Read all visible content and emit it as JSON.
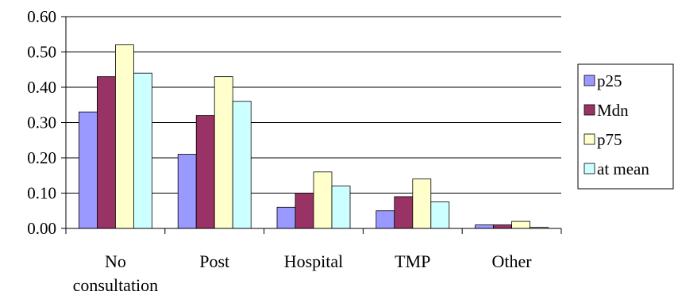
{
  "chart_data": {
    "type": "bar",
    "categories": [
      [
        "No",
        "consultation"
      ],
      [
        "Post"
      ],
      [
        "Hospital"
      ],
      [
        "TMP"
      ],
      [
        "Other"
      ]
    ],
    "series": [
      {
        "name": "p25",
        "color": "#9999ff",
        "values": [
          0.33,
          0.21,
          0.06,
          0.05,
          0.01
        ]
      },
      {
        "name": "Mdn",
        "color": "#993366",
        "values": [
          0.43,
          0.32,
          0.1,
          0.09,
          0.01
        ]
      },
      {
        "name": "p75",
        "color": "#ffffcc",
        "values": [
          0.52,
          0.43,
          0.16,
          0.14,
          0.02
        ]
      },
      {
        "name": "at mean",
        "color": "#ccffff",
        "values": [
          0.44,
          0.36,
          0.12,
          0.075,
          0.003
        ]
      }
    ],
    "ylim": [
      0,
      0.6
    ],
    "yticks": [
      "0.00",
      "0.10",
      "0.20",
      "0.30",
      "0.40",
      "0.50",
      "0.60"
    ],
    "grid": true,
    "legend_position": "right"
  }
}
